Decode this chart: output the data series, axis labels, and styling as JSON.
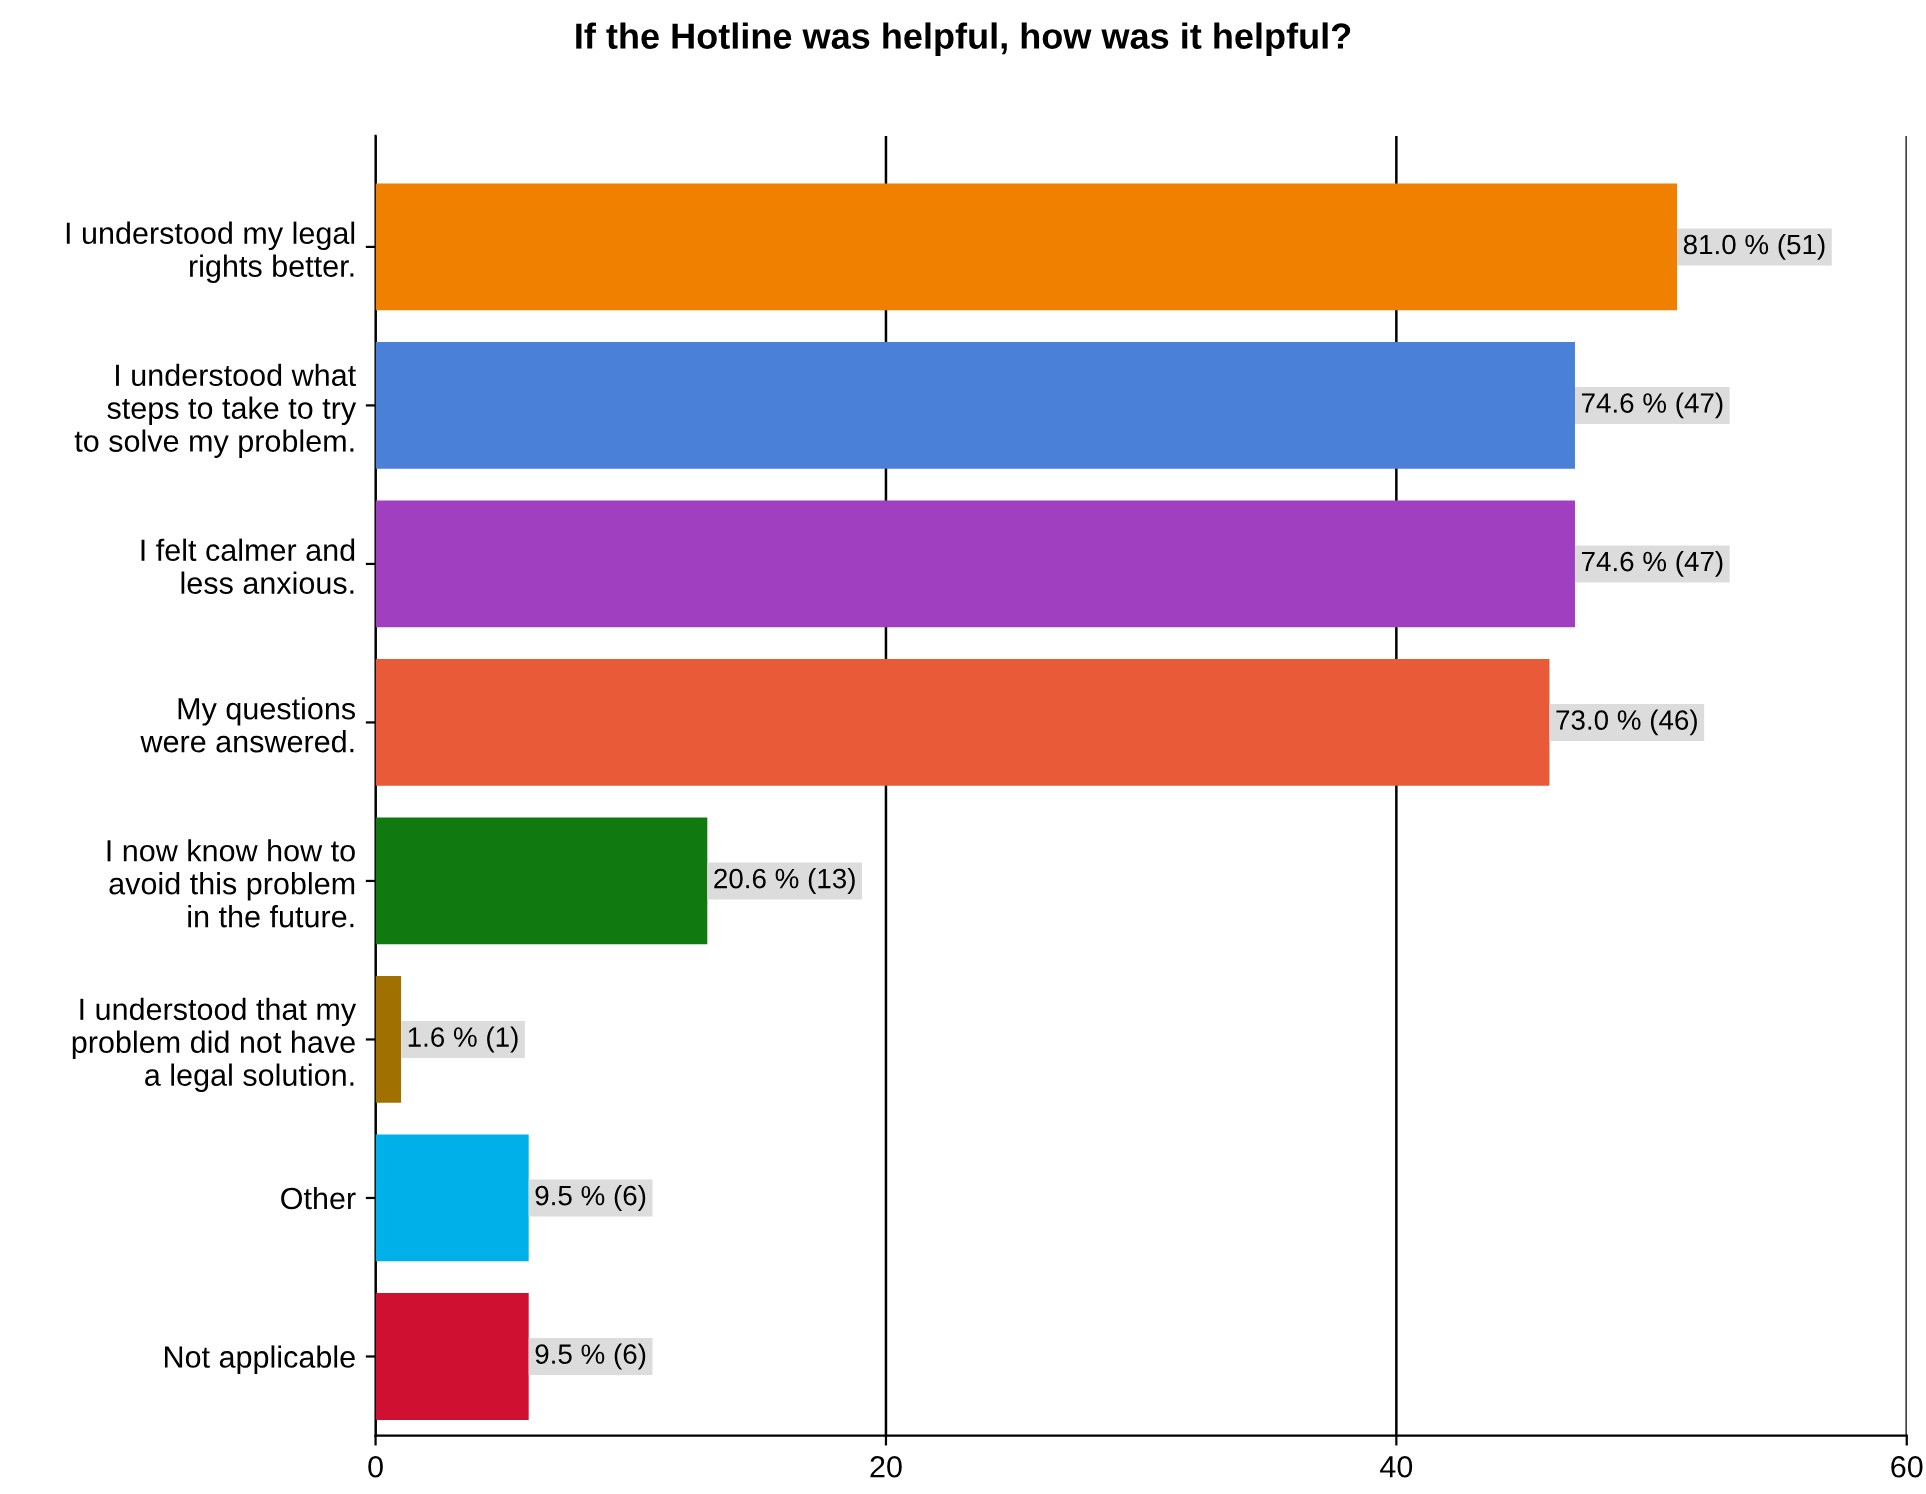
{
  "chart_data": {
    "type": "bar",
    "orientation": "horizontal",
    "title": "If the Hotline was helpful, how was it helpful?",
    "categories": [
      "I understood my legal\nrights better.",
      "I understood what\nsteps to take to try\nto solve my problem.",
      "I felt calmer and\nless anxious.",
      "My questions\nwere answered.",
      "I now know how to\navoid this problem\nin the future.",
      "I understood that my\nproblem did not have\na legal solution.",
      "Other",
      "Not applicable"
    ],
    "values": [
      51,
      47,
      47,
      46,
      13,
      1,
      6,
      6
    ],
    "colors": [
      "#f08000",
      "#4a80d8",
      "#a040c0",
      "#e85a38",
      "#107a10",
      "#a07000",
      "#00b0e8",
      "#d01030"
    ],
    "value_labels": [
      "81.0 % (51)",
      "74.6 % (47)",
      "74.6 % (47)",
      "73.0 % (46)",
      "20.6 % (13)",
      "1.6 % (1)",
      "9.5 % (6)",
      "9.5 % (6)"
    ],
    "xlim": [
      0,
      60
    ],
    "xticks": [
      0,
      20,
      40,
      60
    ],
    "grid": "x",
    "legend": false
  }
}
